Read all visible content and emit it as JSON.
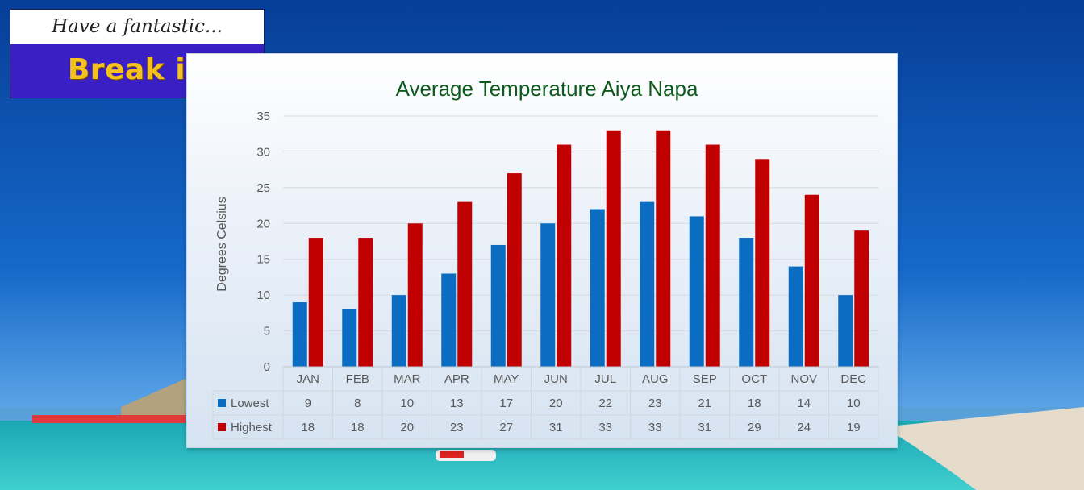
{
  "logo": {
    "line1": "Have a fantastic...",
    "line2": "Break in Cyprus"
  },
  "colors": {
    "lowest": "#0b6dc2",
    "highest": "#c00000",
    "title": "#0e5a1e",
    "gridline": "#d4d9e0",
    "text": "#595959"
  },
  "chart_data": {
    "type": "bar",
    "title": "Average Temperature Aiya Napa",
    "xlabel": "",
    "ylabel": "Degrees Celsius",
    "ylim": [
      0,
      35
    ],
    "yticks": [
      0,
      5,
      10,
      15,
      20,
      25,
      30,
      35
    ],
    "categories": [
      "JAN",
      "FEB",
      "MAR",
      "APR",
      "MAY",
      "JUN",
      "JUL",
      "AUG",
      "SEP",
      "OCT",
      "NOV",
      "DEC"
    ],
    "series": [
      {
        "name": "Lowest",
        "values": [
          9,
          8,
          10,
          13,
          17,
          20,
          22,
          23,
          21,
          18,
          14,
          10
        ]
      },
      {
        "name": "Highest",
        "values": [
          18,
          18,
          20,
          23,
          27,
          31,
          33,
          33,
          31,
          29,
          24,
          19
        ]
      }
    ],
    "legend": "data-table",
    "grid": true
  }
}
